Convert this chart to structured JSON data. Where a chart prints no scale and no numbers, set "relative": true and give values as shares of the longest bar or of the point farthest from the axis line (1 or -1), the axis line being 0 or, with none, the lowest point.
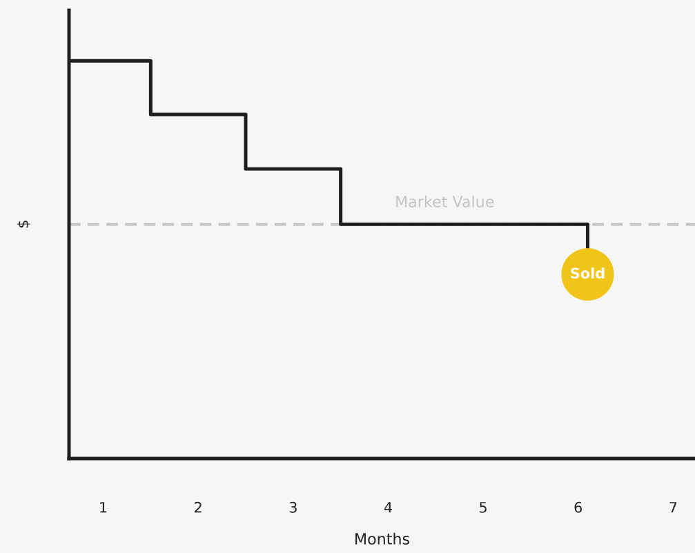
{
  "chart_data": {
    "type": "step",
    "relative": true,
    "xlabel": "Months",
    "ylabel": "$",
    "xlim": [
      0.64,
      7.23
    ],
    "xticks": [
      1,
      2,
      3,
      4,
      5,
      6,
      7
    ],
    "series": [
      {
        "color": "#1e1e1e",
        "x": [
          0.64,
          1.5,
          2.5,
          3.5,
          6.1
        ],
        "values": [
          1,
          0.865,
          0.728,
          0.589,
          0.53
        ]
      },
      {
        "type": "scatter",
        "name": "Sold",
        "color": "#f0c419",
        "marker": "circle",
        "x": [
          6.1
        ],
        "values": [
          0.463
        ]
      }
    ],
    "ref_lines": [
      {
        "axis": "y",
        "value": 0.589,
        "label": "Market Value",
        "color": "#c4c4c4",
        "line_style": "dashed"
      }
    ],
    "legend": false,
    "grid": false
  }
}
